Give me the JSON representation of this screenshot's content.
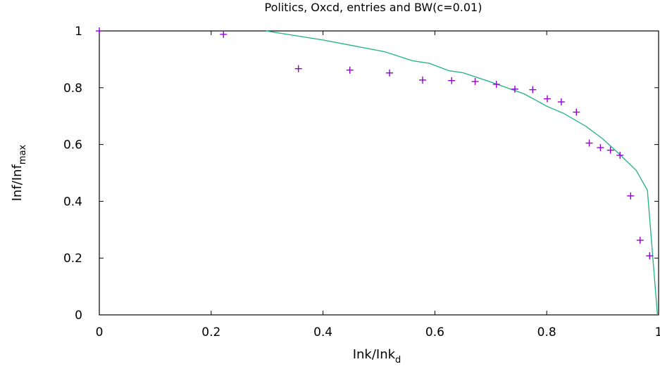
{
  "chart_data": {
    "type": "scatter",
    "title": "Politics, Oxcd, entries and BW(c=0.01)",
    "xlabel": {
      "main": "Ink/Ink",
      "sub": "d"
    },
    "ylabel": {
      "main": "Inf/Inf",
      "sub": "max"
    },
    "xlim": [
      0,
      1
    ],
    "ylim": [
      0,
      1
    ],
    "xticks": [
      "0",
      "0.2",
      "0.4",
      "0.6",
      "0.8",
      "1"
    ],
    "yticks": [
      "0",
      "0.2",
      "0.4",
      "0.6",
      "0.8",
      "1"
    ],
    "grid": false,
    "legend": "none",
    "series": [
      {
        "kind": "points",
        "marker": "plus",
        "color": "#9400d3",
        "points": [
          [
            0.0,
            1.0
          ],
          [
            0.222,
            0.988
          ],
          [
            0.356,
            0.867
          ],
          [
            0.448,
            0.862
          ],
          [
            0.519,
            0.852
          ],
          [
            0.578,
            0.827
          ],
          [
            0.63,
            0.825
          ],
          [
            0.672,
            0.822
          ],
          [
            0.71,
            0.812
          ],
          [
            0.743,
            0.795
          ],
          [
            0.775,
            0.793
          ],
          [
            0.801,
            0.761
          ],
          [
            0.826,
            0.75
          ],
          [
            0.853,
            0.714
          ],
          [
            0.876,
            0.605
          ],
          [
            0.896,
            0.589
          ],
          [
            0.914,
            0.58
          ],
          [
            0.931,
            0.562
          ],
          [
            0.95,
            0.419
          ],
          [
            0.967,
            0.263
          ],
          [
            0.984,
            0.208
          ]
        ]
      },
      {
        "kind": "line",
        "color": "#2bb58e",
        "points": [
          [
            0.298,
            1.0
          ],
          [
            0.4,
            0.968
          ],
          [
            0.51,
            0.927
          ],
          [
            0.56,
            0.895
          ],
          [
            0.59,
            0.886
          ],
          [
            0.625,
            0.86
          ],
          [
            0.65,
            0.853
          ],
          [
            0.7,
            0.82
          ],
          [
            0.76,
            0.778
          ],
          [
            0.8,
            0.735
          ],
          [
            0.83,
            0.71
          ],
          [
            0.87,
            0.664
          ],
          [
            0.9,
            0.62
          ],
          [
            0.93,
            0.566
          ],
          [
            0.96,
            0.509
          ],
          [
            0.98,
            0.439
          ],
          [
            0.998,
            0.0
          ]
        ]
      }
    ]
  }
}
